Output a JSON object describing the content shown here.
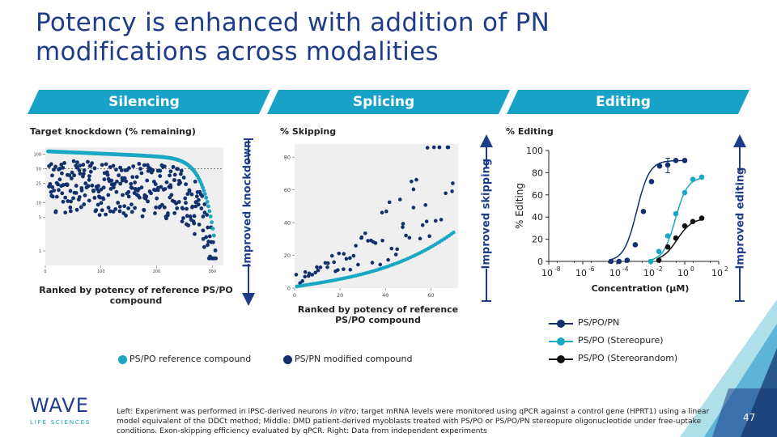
{
  "title": "Potency is enhanced with addition of PN modifications across modalities",
  "banners": [
    "Silencing",
    "Splicing",
    "Editing"
  ],
  "colors": {
    "navy": "#12306b",
    "teal": "#1aa7c4",
    "black": "#111111",
    "banner": "#19a2c8",
    "title": "#1f3c8a",
    "arrow": "#1f3c8a"
  },
  "silencing": {
    "subtitle": "Target knockdown (% remaining)",
    "caption": "Ranked by potency of reference PS/PO compound",
    "side_label": "Improved knockdown"
  },
  "splicing": {
    "subtitle": "% Skipping",
    "caption": "Ranked by potency of reference PS/PO compound",
    "side_label": "Improved skipping"
  },
  "editing": {
    "subtitle": "% Editing",
    "side_label": "Improved editing"
  },
  "legend": {
    "reference": "PS/PO reference compound",
    "modified": "PS/PN modified compound",
    "pn": "PS/PO/PN",
    "stereopure": "PS/PO (Stereopure)",
    "stereorandom": "PS/PO (Stereorandom)"
  },
  "chart_data": [
    {
      "type": "scatter",
      "title": "Target knockdown (% remaining)",
      "xlabel": "Ranked by potency of reference PS/PO compound",
      "x_ticks": [
        "0",
        "100",
        "200",
        "300"
      ],
      "y_ticks": [
        "100",
        "50",
        "25",
        "10",
        "5",
        "1"
      ],
      "y_scale": "log",
      "xlim": [
        0,
        320
      ],
      "ylim": [
        0.5,
        140
      ],
      "reference_line": 50,
      "series": [
        {
          "name": "PS/PO reference compound",
          "color": "#1aa7c4",
          "curve": "sorted"
        },
        {
          "name": "PS/PN modified compound",
          "color": "#12306b",
          "curve": "scatter"
        }
      ]
    },
    {
      "type": "scatter",
      "title": "% Skipping",
      "xlabel": "Ranked by potency of reference PS/PO compound",
      "x_ticks": [
        "0",
        "20",
        "40",
        "60"
      ],
      "y_ticks": [
        "0",
        "20",
        "40",
        "60",
        "80"
      ],
      "xlim": [
        0,
        72
      ],
      "ylim": [
        0,
        88
      ],
      "series": [
        {
          "name": "PS/PO reference compound",
          "color": "#1aa7c4",
          "curve": "sorted"
        },
        {
          "name": "PS/PN modified compound",
          "color": "#12306b",
          "curve": "scatter"
        }
      ]
    },
    {
      "type": "line",
      "title": "% Editing",
      "xlabel": "Concentration (µM)",
      "ylabel": "% Editing",
      "x_scale": "log",
      "x_tick_exponents": [
        -8,
        -6,
        -4,
        -2,
        0,
        2
      ],
      "y_ticks": [
        0,
        20,
        40,
        60,
        80,
        100
      ],
      "xlim": [
        1e-08,
        100
      ],
      "ylim": [
        0,
        100
      ],
      "series": [
        {
          "name": "PS/PO/PN",
          "color": "#12306b",
          "x": [
            4.57e-05,
            0.000137,
            0.000412,
            0.00123,
            0.0037,
            0.0111,
            0.0333,
            0.1,
            0.3,
            1,
            3,
            10
          ],
          "y": [
            0,
            0,
            1,
            15,
            45,
            72,
            86,
            87,
            91,
            91,
            null,
            null
          ]
        },
        {
          "name": "PS/PO (Stereopure)",
          "color": "#1aa7c4",
          "x": [
            0.01,
            0.03,
            0.1,
            0.3,
            1,
            3,
            10
          ],
          "y": [
            0,
            9,
            23,
            43,
            62,
            74,
            76
          ]
        },
        {
          "name": "PS/PO (Stereorandom)",
          "color": "#111111",
          "x": [
            0.03,
            0.1,
            0.3,
            1,
            3,
            10
          ],
          "y": [
            1,
            13,
            21,
            32,
            36,
            39
          ]
        }
      ]
    }
  ],
  "editing_axis": {
    "xlabel": "Concentration (µM)",
    "ylabel": "% Editing",
    "ytick_labels": [
      "0",
      "20",
      "40",
      "60",
      "80",
      "100"
    ],
    "xtick_base": [
      "10",
      "10",
      "10",
      "10",
      "10",
      "10"
    ],
    "xtick_exp": [
      "-8",
      "-6",
      "-4",
      "-2",
      "0",
      "2"
    ]
  },
  "footnote_parts": {
    "a": "Left: Experiment was performed in iPSC-derived neurons ",
    "b": "in vitro",
    "c": "; target mRNA levels were monitored using qPCR against a control gene (HPRT1) using a linear model equivalent of the DDCt method; Middle: DMD patient-derived myoblasts treated with PS/PO or PS/PO/PN stereopure oligonucleotide under free-uptake conditions. Exon-skipping efficiency evaluated by qPCR. Right: Data from independent experiments"
  },
  "logo": {
    "name": "WAVE",
    "sub": "LIFE SCIENCES"
  },
  "page_number": "47"
}
